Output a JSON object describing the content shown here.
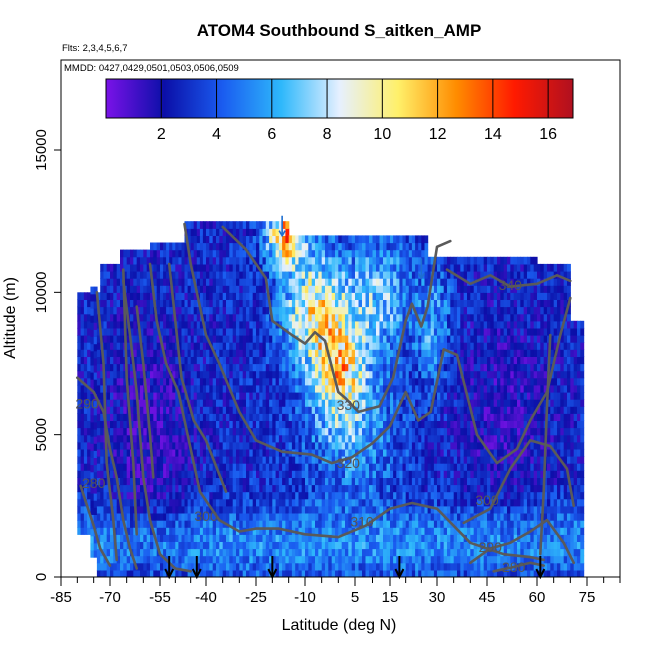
{
  "chart_data": {
    "type": "heatmap",
    "title": "ATOM4 Southbound S_aitken_AMP",
    "flights_label": "Flts: 2,3,4,5,6,7",
    "dates_label": "MMDD: 0427,0429,0501,0503,0506,0509",
    "xlabel": "Latitude (deg N)",
    "ylabel": "Altitude (m)",
    "xlim": [
      -85,
      85
    ],
    "ylim": [
      0,
      17500
    ],
    "x_ticks": [
      -85,
      -70,
      -55,
      -40,
      -25,
      -10,
      5,
      15,
      30,
      45,
      60,
      75
    ],
    "x_minor_step": 5,
    "y_ticks": [
      0,
      5000,
      10000,
      15000
    ],
    "colorbar": {
      "range": [
        0,
        16.9
      ],
      "ticks": [
        2,
        4,
        6,
        8,
        10,
        12,
        14,
        16
      ],
      "colors": [
        "#7a12e8",
        "#0b0fa8",
        "#1a5cf0",
        "#2eb8fb",
        "#e6f0ff",
        "#fff06a",
        "#ff8c00",
        "#ff1a00",
        "#b01020"
      ]
    },
    "contours": [
      {
        "label": "340",
        "value": 340
      },
      {
        "label": "330",
        "value": 330
      },
      {
        "label": "320",
        "value": 320
      },
      {
        "label": "310",
        "value": 310
      },
      {
        "label": "300",
        "value": 300
      },
      {
        "label": "290",
        "value": 290
      },
      {
        "label": "280",
        "value": 280
      }
    ],
    "profile_markers_lat": [
      -52,
      -43,
      -20,
      18,
      61
    ],
    "plume_lat": [
      -17,
      5,
      12,
      25
    ],
    "colors": {
      "contour": "#5a5a5a",
      "marker": "#000000"
    }
  }
}
